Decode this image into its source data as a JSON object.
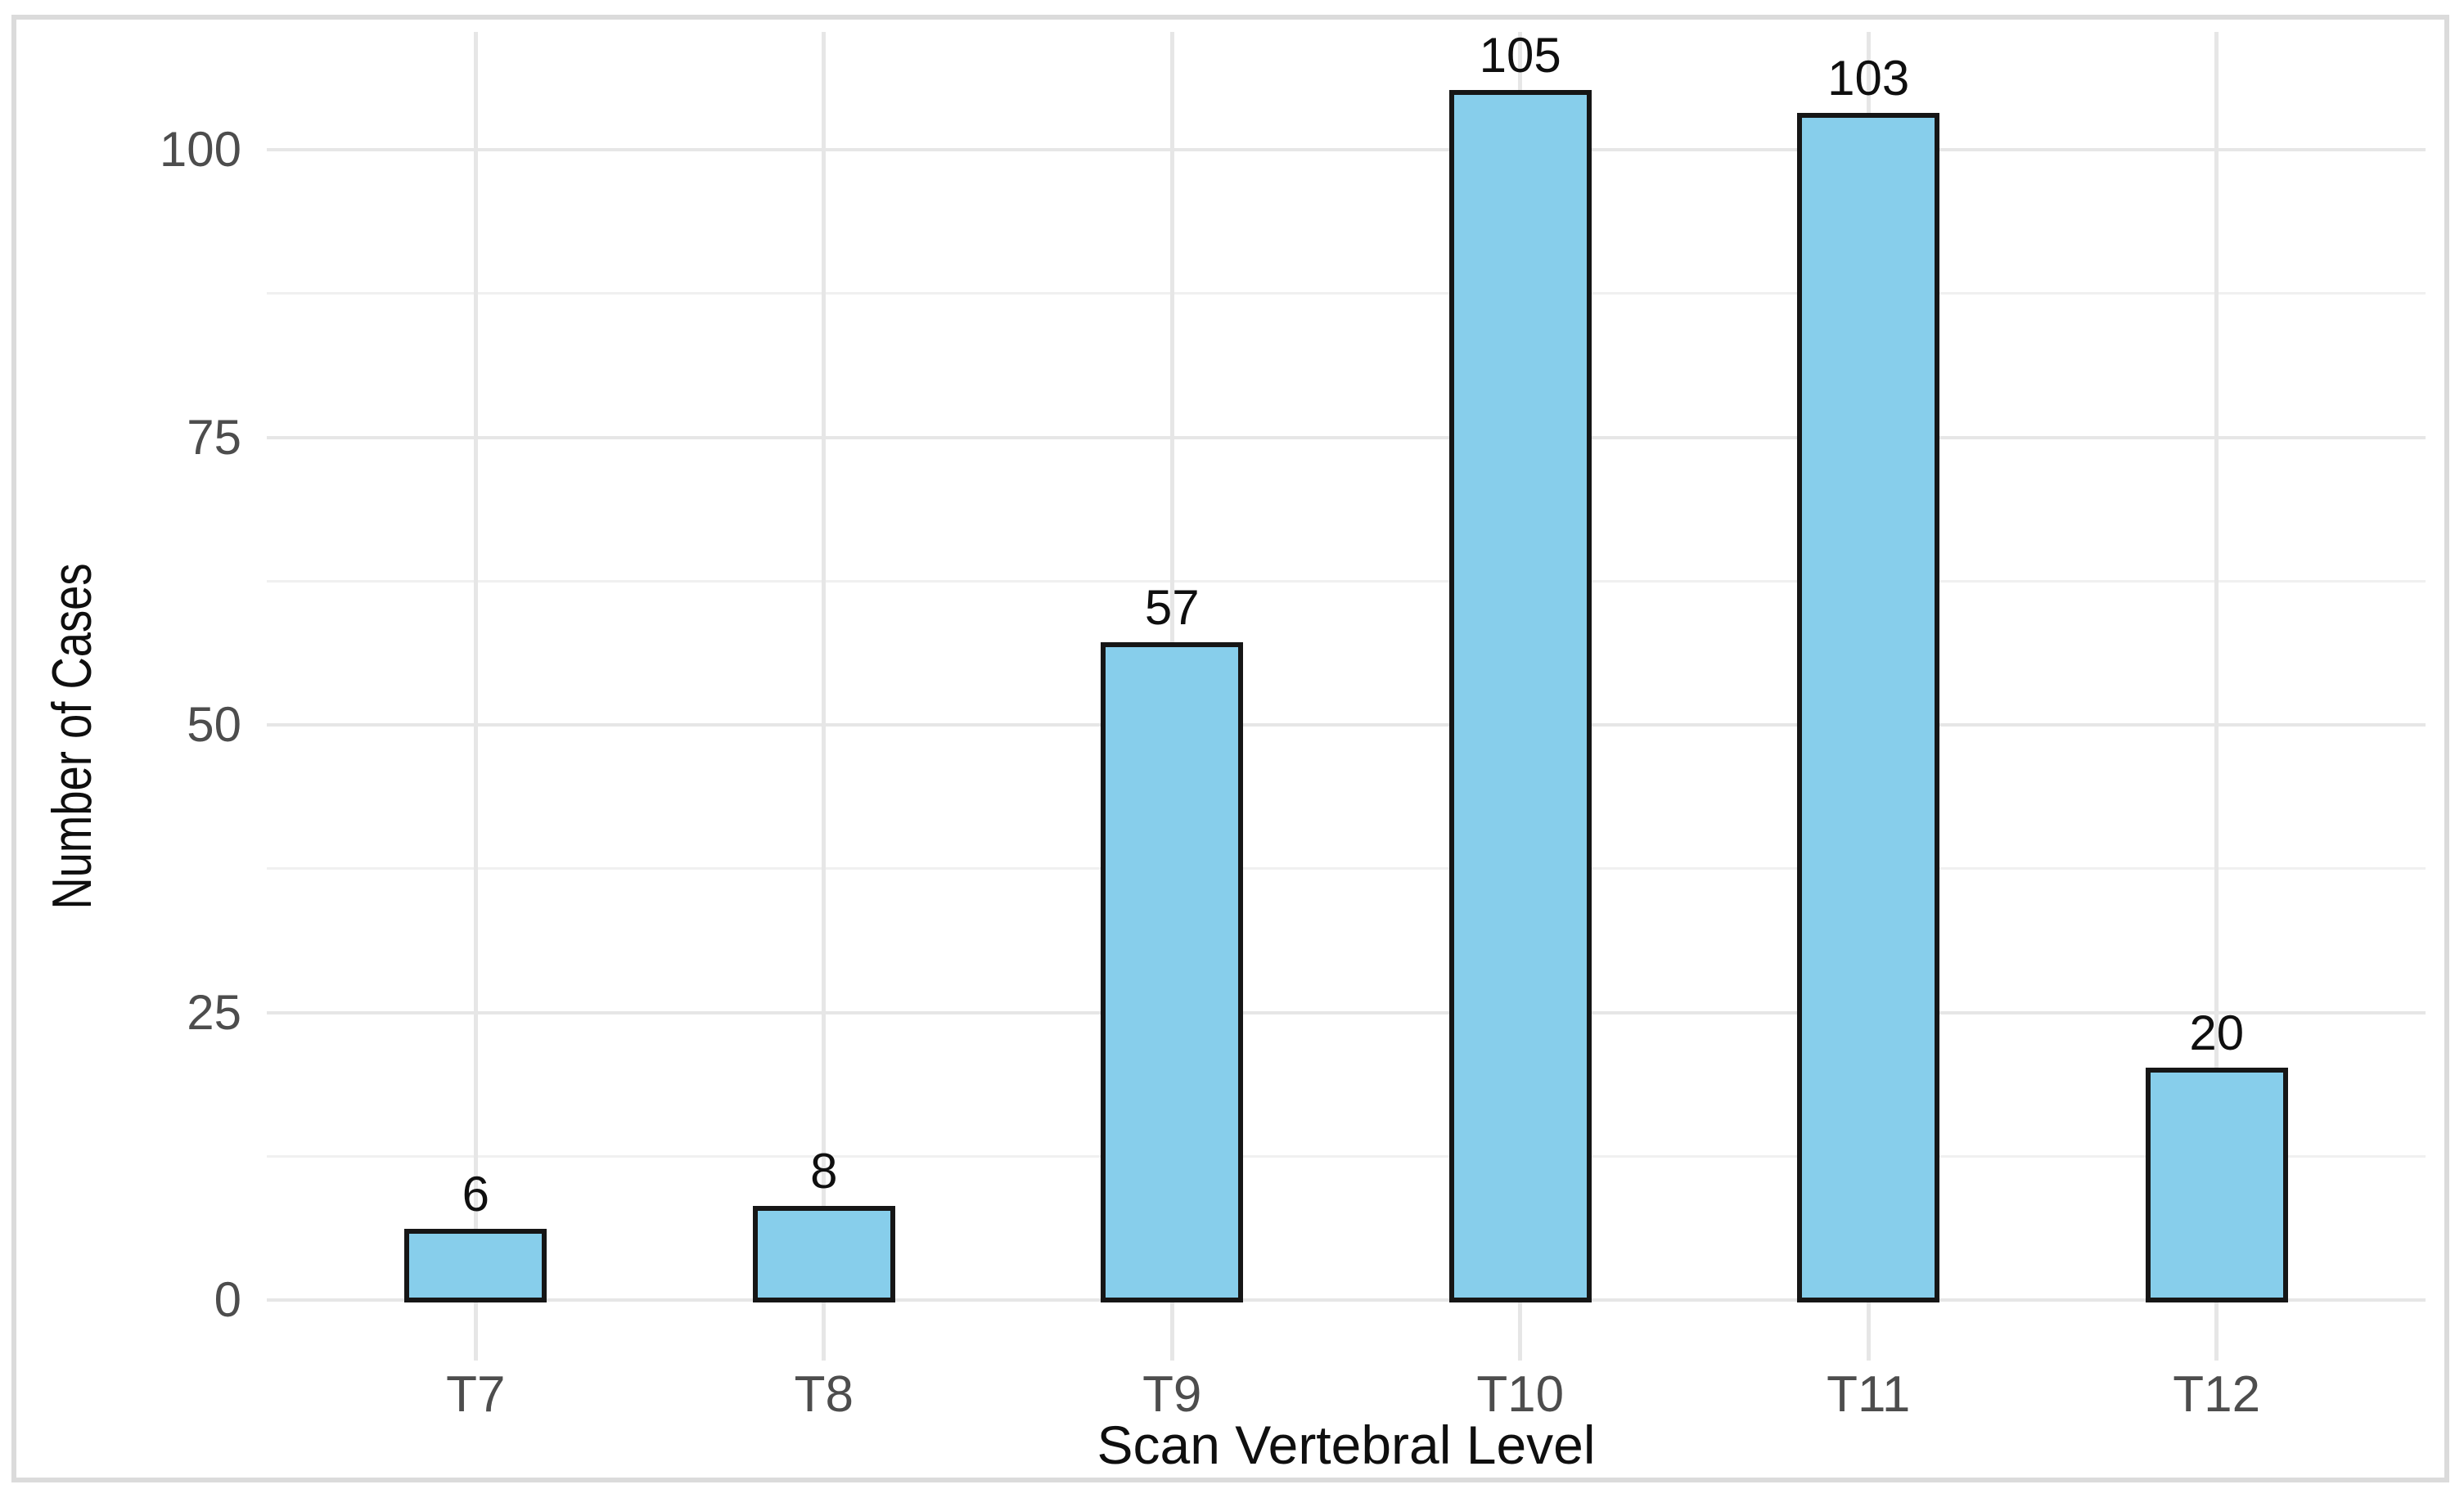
{
  "figure": {
    "background": "#FFFFFF",
    "border_color": "#DBDBDB"
  },
  "chart_data": {
    "type": "bar",
    "title": "",
    "categories": [
      "T7",
      "T8",
      "T9",
      "T10",
      "T11",
      "T12"
    ],
    "values": [
      6,
      8,
      57,
      105,
      103,
      20
    ],
    "bar_value_labels": [
      "6",
      "8",
      "57",
      "105",
      "103",
      "20"
    ],
    "xlabel": "Scan Vertebral Level",
    "ylabel": "Number of Cases",
    "y_ticks": [
      0,
      25,
      50,
      75,
      100
    ],
    "y_minor_ticks": [
      12.5,
      37.5,
      62.5,
      87.5
    ],
    "ylim": [
      -5.25,
      110.25
    ],
    "grid": {
      "horizontal_major": true,
      "horizontal_minor": true,
      "vertical_major_at_categories": true,
      "vertical_minor": false
    },
    "legend": "none",
    "colors": {
      "bar_fill": "#87CEEB",
      "bar_border": "#161616",
      "grid_major": "#E6E6E6",
      "grid_minor": "#F0F0F0",
      "tick_label": "#4D4D4D",
      "axis_title": "#0F0F0F",
      "value_label": "#0F0F0F"
    }
  }
}
